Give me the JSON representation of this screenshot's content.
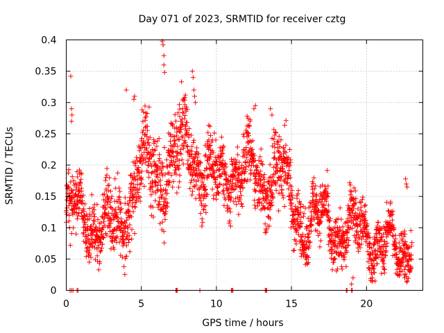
{
  "chart_data": {
    "type": "scatter",
    "title": "Day 071 of 2023, SRMTID for receiver cztg",
    "xlabel": "GPS time / hours",
    "ylabel": "SRMTID / TECUs",
    "xlim": [
      0,
      23.75
    ],
    "ylim": [
      0,
      0.4
    ],
    "xticks": [
      0,
      5,
      10,
      15,
      20
    ],
    "xtick_labels": [
      "0",
      "5",
      "10",
      "15",
      "20"
    ],
    "yticks": [
      0,
      0.05,
      0.1,
      0.15,
      0.2,
      0.25,
      0.3,
      0.35,
      0.4
    ],
    "ytick_labels": [
      "0",
      "0.05",
      "0.1",
      "0.15",
      "0.2",
      "0.25",
      "0.3",
      "0.35",
      "0.4"
    ],
    "grid": true,
    "series": [
      {
        "name": "SRMTID",
        "marker": "+",
        "color": "#ff0000",
        "trend": {
          "x": [
            0,
            1,
            2,
            3,
            4,
            5,
            6,
            7,
            8,
            9,
            10,
            11,
            12,
            13,
            14,
            15,
            16,
            17,
            18,
            19,
            20,
            21,
            22,
            23
          ],
          "y": [
            0.12,
            0.12,
            0.11,
            0.09,
            0.14,
            0.19,
            0.19,
            0.2,
            0.23,
            0.2,
            0.17,
            0.19,
            0.19,
            0.17,
            0.2,
            0.14,
            0.11,
            0.11,
            0.1,
            0.09,
            0.1,
            0.07,
            0.06,
            0.09
          ]
        },
        "spread": {
          "x": [
            0,
            2,
            4,
            6,
            8,
            10,
            12,
            14,
            16,
            18,
            20,
            22,
            23
          ],
          "y": [
            0.035,
            0.03,
            0.04,
            0.045,
            0.04,
            0.035,
            0.035,
            0.04,
            0.03,
            0.03,
            0.03,
            0.025,
            0.03
          ]
        },
        "x_range": [
          0,
          23
        ],
        "point_count": 2400,
        "highlights": [
          {
            "x": 0.3,
            "y": 0.342
          },
          {
            "x": 0.35,
            "y": 0.29
          },
          {
            "x": 0.38,
            "y": 0.28
          },
          {
            "x": 0.35,
            "y": 0.27
          },
          {
            "x": 6.4,
            "y": 0.398
          },
          {
            "x": 6.45,
            "y": 0.392
          },
          {
            "x": 6.5,
            "y": 0.375
          },
          {
            "x": 6.5,
            "y": 0.36
          },
          {
            "x": 6.55,
            "y": 0.348
          },
          {
            "x": 4.0,
            "y": 0.32
          },
          {
            "x": 4.5,
            "y": 0.305
          },
          {
            "x": 4.55,
            "y": 0.31
          },
          {
            "x": 8.4,
            "y": 0.35
          },
          {
            "x": 8.45,
            "y": 0.34
          },
          {
            "x": 8.5,
            "y": 0.32
          },
          {
            "x": 8.55,
            "y": 0.31
          },
          {
            "x": 8.6,
            "y": 0.3
          },
          {
            "x": 12.6,
            "y": 0.295
          },
          {
            "x": 12.5,
            "y": 0.29
          },
          {
            "x": 13.6,
            "y": 0.29
          },
          {
            "x": 13.7,
            "y": 0.28
          },
          {
            "x": 22.6,
            "y": 0.178
          },
          {
            "x": 22.65,
            "y": 0.17
          },
          {
            "x": 22.7,
            "y": 0.165
          },
          {
            "x": 22.5,
            "y": 0.025
          },
          {
            "x": 22.55,
            "y": 0.02
          },
          {
            "x": 19.0,
            "y": 0.01
          },
          {
            "x": 19.1,
            "y": 0.02
          }
        ],
        "zero_points": [
          0.25,
          0.35,
          0.45,
          0.72,
          0.78,
          7.3,
          7.35,
          7.4,
          8.9,
          11.0,
          11.05,
          11.1,
          13.25,
          13.3,
          13.35,
          18.65,
          18.7,
          19.0,
          19.05
        ]
      }
    ]
  }
}
